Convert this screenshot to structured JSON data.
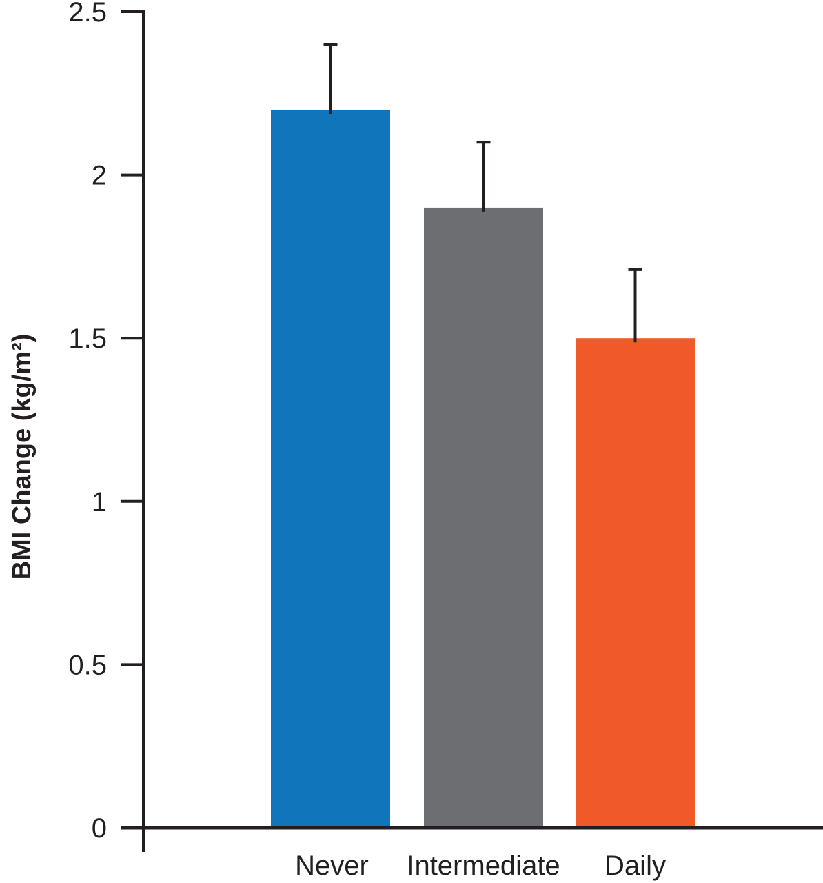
{
  "chart_data": {
    "type": "bar",
    "title": "",
    "xlabel": "",
    "ylabel": "BMI Change (kg/m²)",
    "ylim": [
      0,
      2.5
    ],
    "yticks": [
      0,
      0.5,
      1,
      1.5,
      2,
      2.5
    ],
    "ytick_labels": [
      "0",
      "0.5",
      "1",
      "1.5",
      "2",
      "2.5"
    ],
    "categories": [
      "Never",
      "Intermediate",
      "Daily"
    ],
    "values": [
      2.2,
      1.9,
      1.5
    ],
    "error_upper": [
      2.4,
      2.1,
      1.71
    ],
    "colors": [
      "#1175BB",
      "#6D6E71",
      "#F05A28"
    ],
    "grid": false
  }
}
